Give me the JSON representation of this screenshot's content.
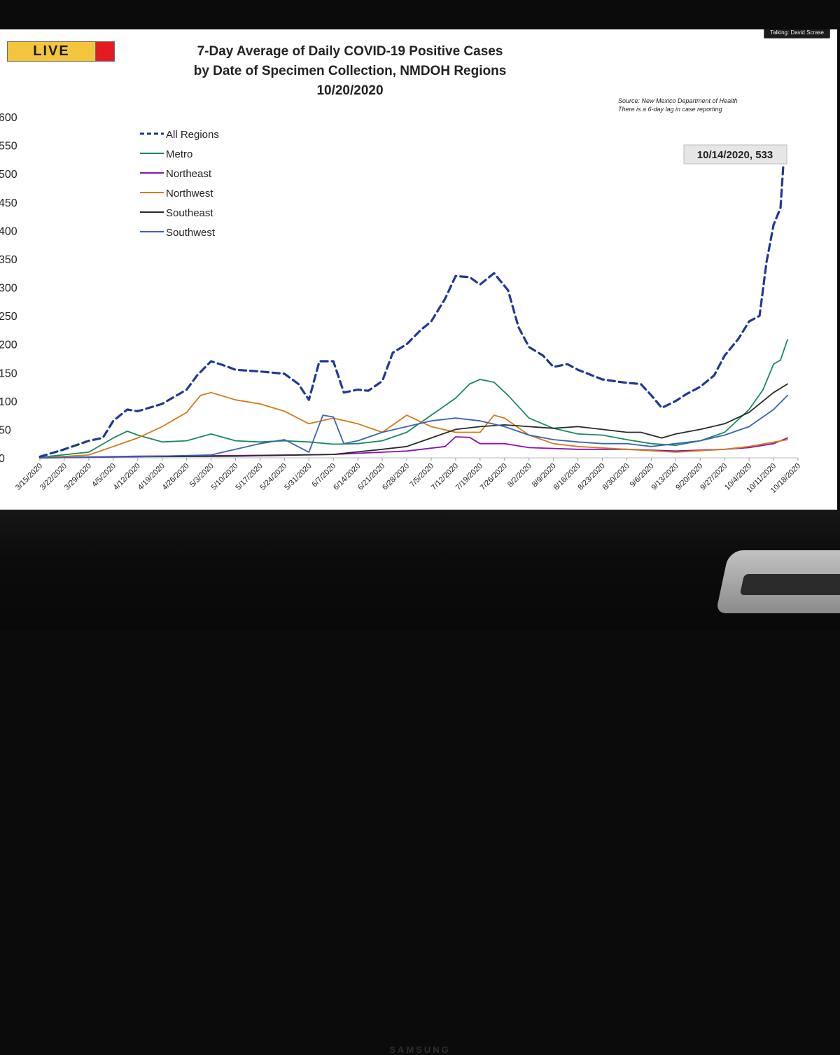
{
  "overlay": {
    "live_label": "LIVE",
    "talking_label": "Talking: David Scrase",
    "brand": "SAMSUNG"
  },
  "chart_data": {
    "type": "line",
    "title_lines": [
      "7-Day Average of Daily COVID-19 Positive Cases",
      "by Date of Specimen Collection, NMDOH Regions",
      "10/20/2020"
    ],
    "source_lines": [
      "Source: New Mexico Department of Health",
      "There is a 6-day lag in case reporting"
    ],
    "annotation": {
      "text": "10/14/2020, 533",
      "date": "10/14/2020",
      "value": 533,
      "series": "All Regions"
    },
    "ylim": [
      0,
      600
    ],
    "y_ticks": [
      0,
      50,
      100,
      150,
      200,
      250,
      300,
      350,
      400,
      450,
      500,
      550,
      600
    ],
    "x_start": "3/15/2020",
    "x_end": "10/18/2020",
    "x_tick_labels": [
      "3/15/2020",
      "3/22/2020",
      "3/29/2020",
      "4/5/2020",
      "4/12/2020",
      "4/19/2020",
      "4/26/2020",
      "5/3/2020",
      "5/10/2020",
      "5/17/2020",
      "5/24/2020",
      "5/31/2020",
      "6/7/2020",
      "6/14/2020",
      "6/21/2020",
      "6/28/2020",
      "7/5/2020",
      "7/12/2020",
      "7/19/2020",
      "7/26/2020",
      "8/2/2020",
      "8/9/2020",
      "8/16/2020",
      "8/23/2020",
      "8/30/2020",
      "9/6/2020",
      "9/13/2020",
      "9/20/2020",
      "9/27/2020",
      "10/4/2020",
      "10/11/2020",
      "10/18/2020"
    ],
    "legend_position": "top-left",
    "grid": false,
    "series": [
      {
        "name": "All Regions",
        "color": "#1f3a93",
        "dashed": true,
        "points": [
          [
            "3/15/2020",
            2
          ],
          [
            "3/22/2020",
            15
          ],
          [
            "3/29/2020",
            30
          ],
          [
            "4/2/2020",
            35
          ],
          [
            "4/5/2020",
            65
          ],
          [
            "4/9/2020",
            85
          ],
          [
            "4/12/2020",
            82
          ],
          [
            "4/19/2020",
            95
          ],
          [
            "4/26/2020",
            120
          ],
          [
            "4/29/2020",
            145
          ],
          [
            "5/3/2020",
            170
          ],
          [
            "5/7/2020",
            162
          ],
          [
            "5/10/2020",
            155
          ],
          [
            "5/17/2020",
            152
          ],
          [
            "5/24/2020",
            148
          ],
          [
            "5/28/2020",
            130
          ],
          [
            "5/31/2020",
            102
          ],
          [
            "6/3/2020",
            170
          ],
          [
            "6/7/2020",
            170
          ],
          [
            "6/10/2020",
            115
          ],
          [
            "6/14/2020",
            120
          ],
          [
            "6/17/2020",
            118
          ],
          [
            "6/21/2020",
            135
          ],
          [
            "6/24/2020",
            185
          ],
          [
            "6/28/2020",
            200
          ],
          [
            "7/2/2020",
            225
          ],
          [
            "7/5/2020",
            240
          ],
          [
            "7/9/2020",
            280
          ],
          [
            "7/12/2020",
            320
          ],
          [
            "7/16/2020",
            318
          ],
          [
            "7/19/2020",
            305
          ],
          [
            "7/23/2020",
            325
          ],
          [
            "7/27/2020",
            295
          ],
          [
            "7/30/2020",
            230
          ],
          [
            "8/2/2020",
            195
          ],
          [
            "8/6/2020",
            180
          ],
          [
            "8/9/2020",
            160
          ],
          [
            "8/13/2020",
            165
          ],
          [
            "8/16/2020",
            155
          ],
          [
            "8/23/2020",
            138
          ],
          [
            "8/30/2020",
            132
          ],
          [
            "9/3/2020",
            130
          ],
          [
            "9/6/2020",
            110
          ],
          [
            "9/9/2020",
            88
          ],
          [
            "9/13/2020",
            100
          ],
          [
            "9/16/2020",
            112
          ],
          [
            "9/20/2020",
            125
          ],
          [
            "9/24/2020",
            145
          ],
          [
            "9/27/2020",
            180
          ],
          [
            "10/1/2020",
            210
          ],
          [
            "10/4/2020",
            240
          ],
          [
            "10/7/2020",
            250
          ],
          [
            "10/9/2020",
            345
          ],
          [
            "10/11/2020",
            410
          ],
          [
            "10/13/2020",
            440
          ],
          [
            "10/14/2020",
            533
          ]
        ]
      },
      {
        "name": "Metro",
        "color": "#1a8a5a",
        "dashed": false,
        "points": [
          [
            "3/15/2020",
            1
          ],
          [
            "3/29/2020",
            10
          ],
          [
            "4/5/2020",
            35
          ],
          [
            "4/9/2020",
            47
          ],
          [
            "4/12/2020",
            40
          ],
          [
            "4/19/2020",
            28
          ],
          [
            "4/26/2020",
            30
          ],
          [
            "5/3/2020",
            42
          ],
          [
            "5/10/2020",
            30
          ],
          [
            "5/17/2020",
            28
          ],
          [
            "5/24/2020",
            30
          ],
          [
            "5/31/2020",
            28
          ],
          [
            "6/7/2020",
            24
          ],
          [
            "6/14/2020",
            25
          ],
          [
            "6/21/2020",
            30
          ],
          [
            "6/28/2020",
            45
          ],
          [
            "7/5/2020",
            75
          ],
          [
            "7/12/2020",
            105
          ],
          [
            "7/16/2020",
            130
          ],
          [
            "7/19/2020",
            138
          ],
          [
            "7/23/2020",
            133
          ],
          [
            "7/27/2020",
            110
          ],
          [
            "8/2/2020",
            70
          ],
          [
            "8/9/2020",
            52
          ],
          [
            "8/16/2020",
            42
          ],
          [
            "8/23/2020",
            40
          ],
          [
            "8/30/2020",
            32
          ],
          [
            "9/6/2020",
            25
          ],
          [
            "9/13/2020",
            22
          ],
          [
            "9/20/2020",
            30
          ],
          [
            "9/27/2020",
            45
          ],
          [
            "10/4/2020",
            85
          ],
          [
            "10/8/2020",
            120
          ],
          [
            "10/11/2020",
            165
          ],
          [
            "10/13/2020",
            172
          ],
          [
            "10/15/2020",
            208
          ]
        ]
      },
      {
        "name": "Northeast",
        "color": "#8b12b5",
        "dashed": false,
        "points": [
          [
            "3/15/2020",
            0
          ],
          [
            "4/12/2020",
            3
          ],
          [
            "5/10/2020",
            4
          ],
          [
            "6/7/2020",
            6
          ],
          [
            "6/28/2020",
            12
          ],
          [
            "7/9/2020",
            20
          ],
          [
            "7/12/2020",
            37
          ],
          [
            "7/16/2020",
            36
          ],
          [
            "7/19/2020",
            25
          ],
          [
            "7/26/2020",
            25
          ],
          [
            "8/2/2020",
            18
          ],
          [
            "8/16/2020",
            15
          ],
          [
            "8/30/2020",
            15
          ],
          [
            "9/13/2020",
            12
          ],
          [
            "9/27/2020",
            15
          ],
          [
            "10/4/2020",
            18
          ],
          [
            "10/11/2020",
            25
          ],
          [
            "10/15/2020",
            35
          ]
        ]
      },
      {
        "name": "Northwest",
        "color": "#d47a1a",
        "dashed": false,
        "points": [
          [
            "3/15/2020",
            0
          ],
          [
            "3/29/2020",
            5
          ],
          [
            "4/5/2020",
            20
          ],
          [
            "4/12/2020",
            35
          ],
          [
            "4/19/2020",
            55
          ],
          [
            "4/26/2020",
            80
          ],
          [
            "4/30/2020",
            110
          ],
          [
            "5/3/2020",
            115
          ],
          [
            "5/10/2020",
            102
          ],
          [
            "5/17/2020",
            95
          ],
          [
            "5/24/2020",
            82
          ],
          [
            "5/31/2020",
            60
          ],
          [
            "6/7/2020",
            70
          ],
          [
            "6/14/2020",
            60
          ],
          [
            "6/21/2020",
            45
          ],
          [
            "6/28/2020",
            75
          ],
          [
            "7/5/2020",
            55
          ],
          [
            "7/12/2020",
            45
          ],
          [
            "7/19/2020",
            45
          ],
          [
            "7/23/2020",
            75
          ],
          [
            "7/26/2020",
            70
          ],
          [
            "8/2/2020",
            40
          ],
          [
            "8/9/2020",
            25
          ],
          [
            "8/16/2020",
            20
          ],
          [
            "8/30/2020",
            15
          ],
          [
            "9/13/2020",
            10
          ],
          [
            "9/27/2020",
            15
          ],
          [
            "10/4/2020",
            20
          ],
          [
            "10/15/2020",
            32
          ]
        ]
      },
      {
        "name": "Southeast",
        "color": "#2a2a2a",
        "dashed": false,
        "points": [
          [
            "3/15/2020",
            0
          ],
          [
            "4/12/2020",
            2
          ],
          [
            "5/10/2020",
            3
          ],
          [
            "6/7/2020",
            6
          ],
          [
            "6/21/2020",
            15
          ],
          [
            "6/28/2020",
            20
          ],
          [
            "7/5/2020",
            35
          ],
          [
            "7/12/2020",
            50
          ],
          [
            "7/19/2020",
            55
          ],
          [
            "7/26/2020",
            58
          ],
          [
            "8/2/2020",
            55
          ],
          [
            "8/9/2020",
            52
          ],
          [
            "8/16/2020",
            55
          ],
          [
            "8/23/2020",
            50
          ],
          [
            "8/30/2020",
            45
          ],
          [
            "9/3/2020",
            45
          ],
          [
            "9/9/2020",
            35
          ],
          [
            "9/13/2020",
            42
          ],
          [
            "9/20/2020",
            50
          ],
          [
            "9/27/2020",
            60
          ],
          [
            "10/4/2020",
            80
          ],
          [
            "10/11/2020",
            115
          ],
          [
            "10/15/2020",
            130
          ]
        ]
      },
      {
        "name": "Southwest",
        "color": "#3a63b8",
        "dashed": false,
        "points": [
          [
            "3/15/2020",
            0
          ],
          [
            "4/12/2020",
            2
          ],
          [
            "5/3/2020",
            5
          ],
          [
            "5/10/2020",
            15
          ],
          [
            "5/17/2020",
            25
          ],
          [
            "5/24/2020",
            32
          ],
          [
            "5/31/2020",
            10
          ],
          [
            "6/4/2020",
            75
          ],
          [
            "6/7/2020",
            72
          ],
          [
            "6/10/2020",
            25
          ],
          [
            "6/14/2020",
            30
          ],
          [
            "6/21/2020",
            45
          ],
          [
            "6/28/2020",
            55
          ],
          [
            "7/5/2020",
            65
          ],
          [
            "7/12/2020",
            70
          ],
          [
            "7/19/2020",
            65
          ],
          [
            "7/26/2020",
            55
          ],
          [
            "8/2/2020",
            40
          ],
          [
            "8/9/2020",
            32
          ],
          [
            "8/16/2020",
            28
          ],
          [
            "8/23/2020",
            25
          ],
          [
            "8/30/2020",
            25
          ],
          [
            "9/6/2020",
            20
          ],
          [
            "9/13/2020",
            25
          ],
          [
            "9/20/2020",
            30
          ],
          [
            "9/27/2020",
            40
          ],
          [
            "10/4/2020",
            55
          ],
          [
            "10/11/2020",
            85
          ],
          [
            "10/15/2020",
            110
          ]
        ]
      }
    ]
  }
}
